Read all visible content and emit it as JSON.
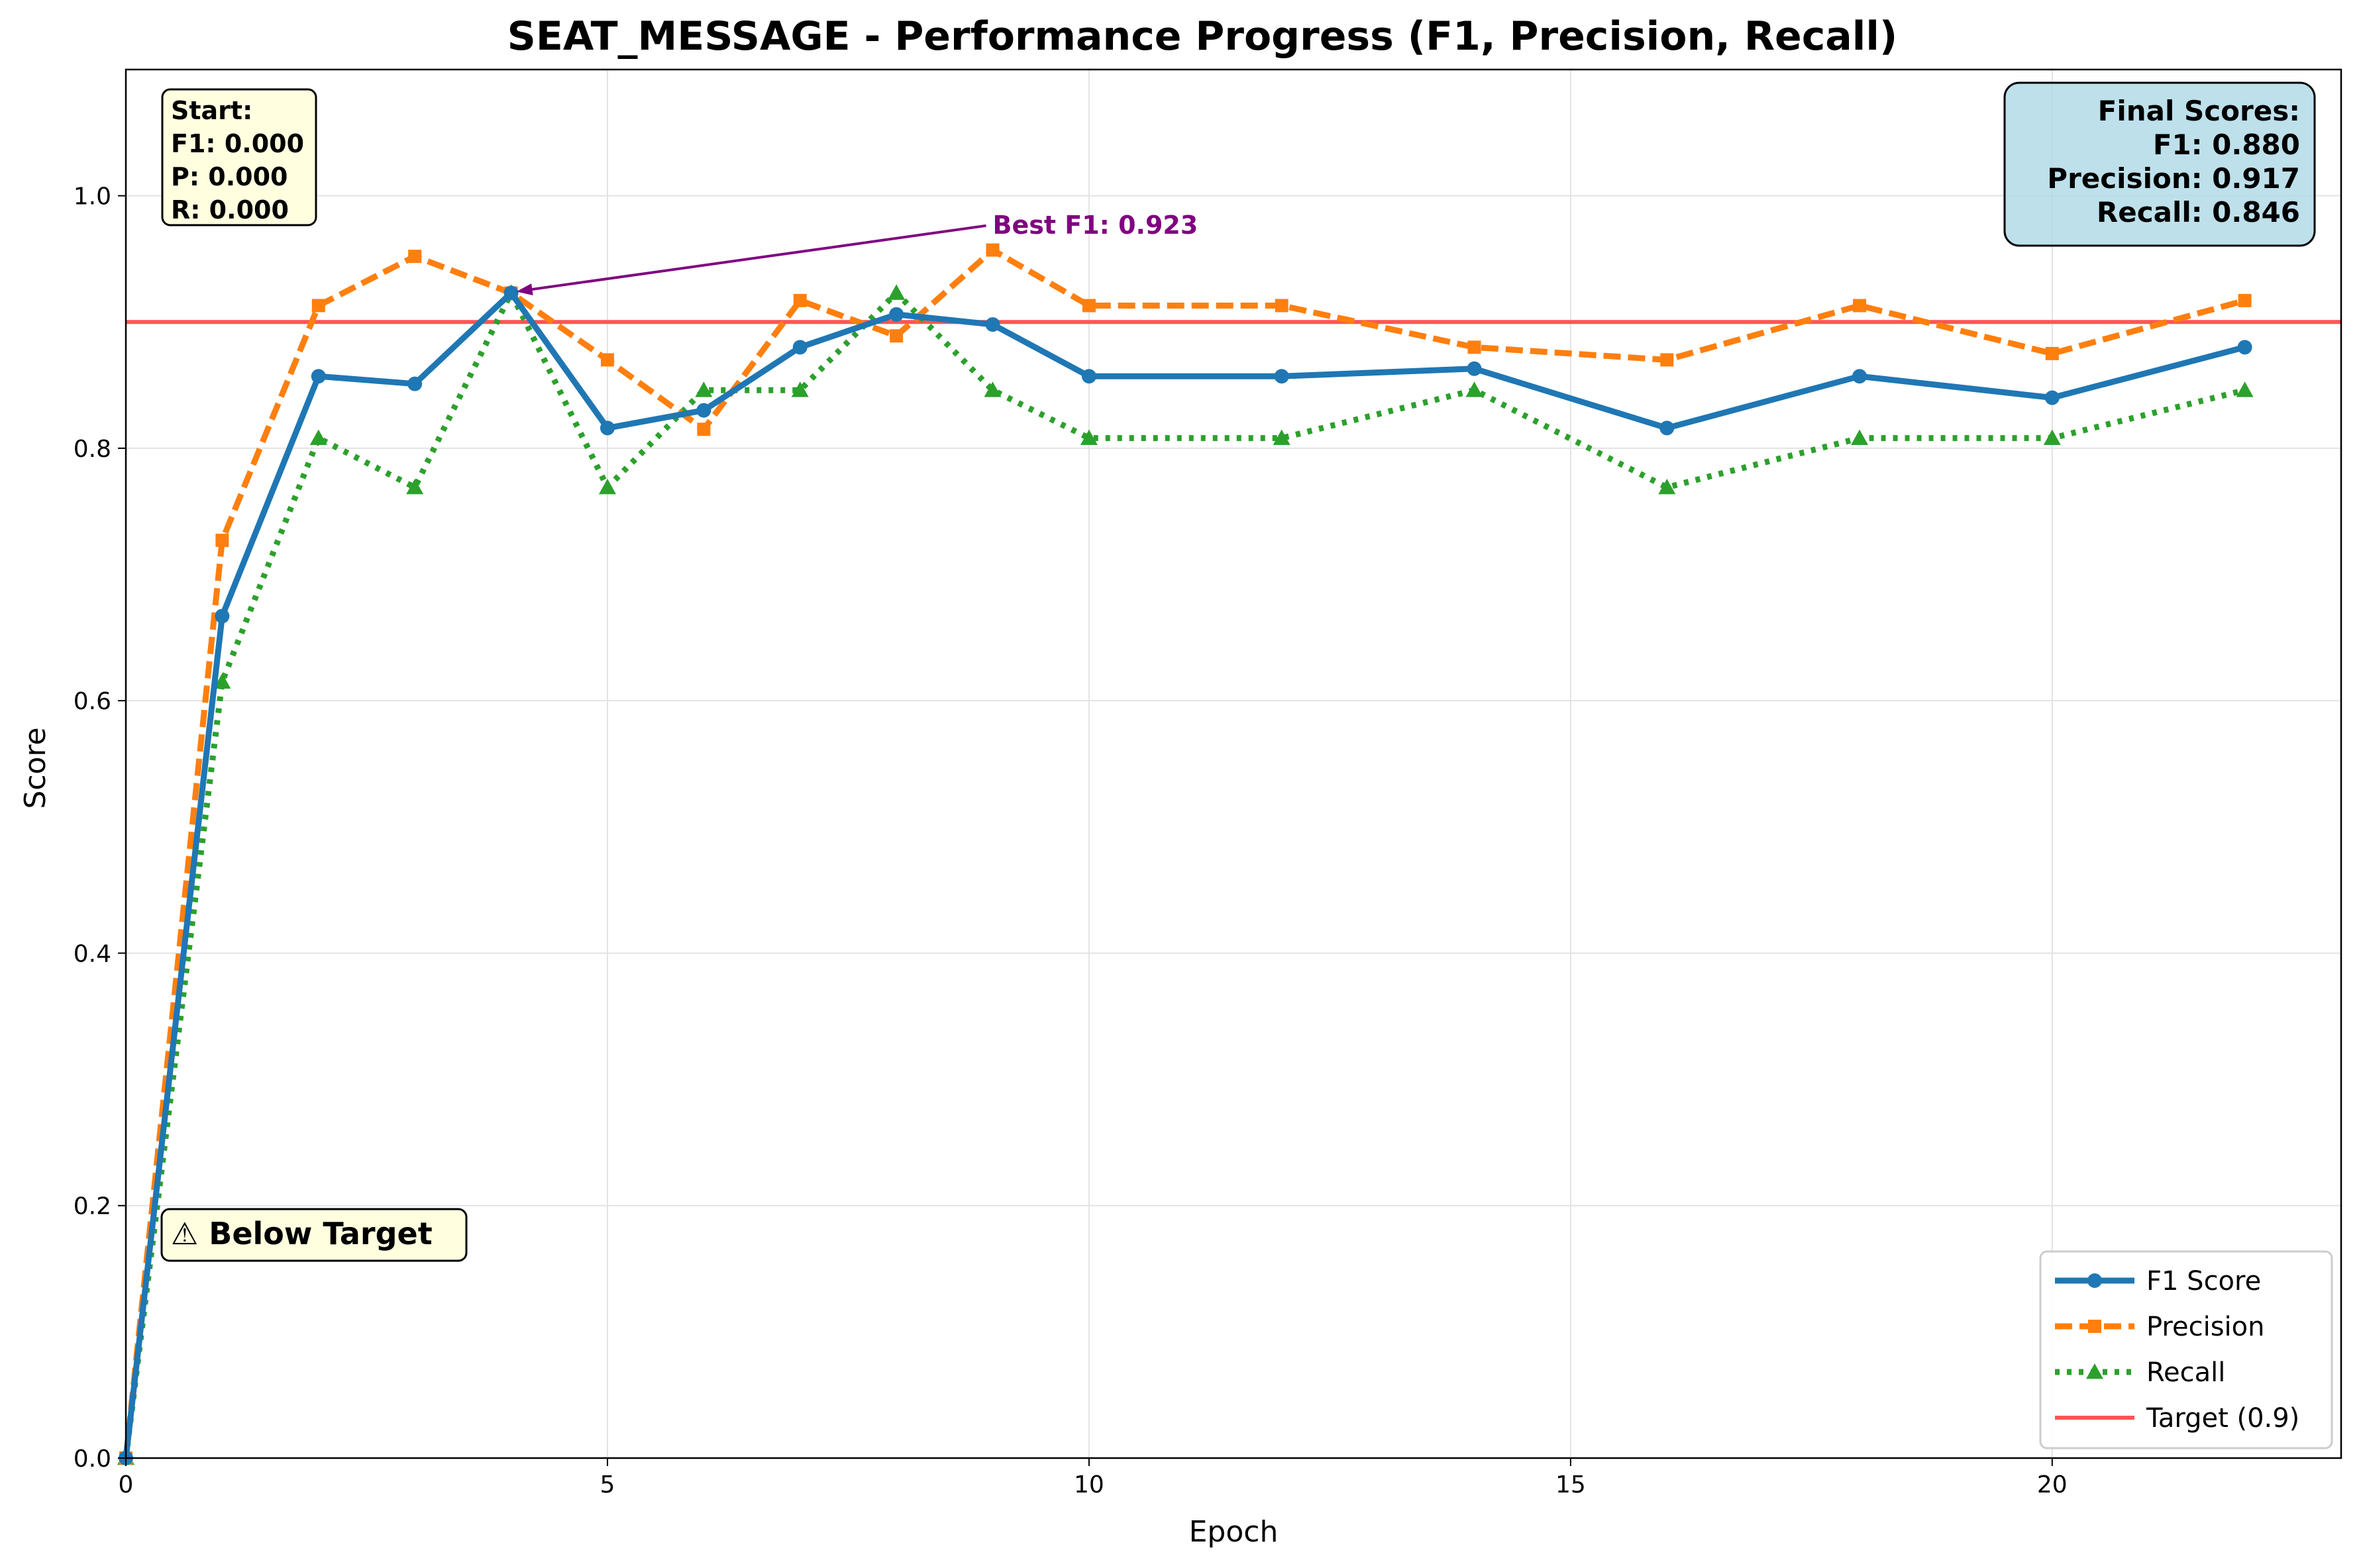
{
  "chart_data": {
    "type": "line",
    "title": "SEAT_MESSAGE - Performance Progress (F1, Precision, Recall)",
    "xlabel": "Epoch",
    "ylabel": "Score",
    "xlim": [
      0,
      23
    ],
    "ylim": [
      0,
      1.1
    ],
    "xticks": [
      0,
      5,
      10,
      15,
      20
    ],
    "xtick_labels": [
      "0",
      "5",
      "10",
      "15",
      "20"
    ],
    "yticks": [
      0.0,
      0.2,
      0.4,
      0.6,
      0.8,
      1.0
    ],
    "ytick_labels": [
      "0.0",
      "0.2",
      "0.4",
      "0.6",
      "0.8",
      "1.0"
    ],
    "grid": true,
    "x": [
      0,
      1,
      2,
      3,
      4,
      5,
      6,
      7,
      8,
      9,
      10,
      12,
      14,
      16,
      18,
      20,
      22
    ],
    "series": [
      {
        "name": "F1 Score",
        "color": "#1f77b4",
        "style": "solid",
        "marker": "circle",
        "values": [
          0.0,
          0.667,
          0.857,
          0.851,
          0.923,
          0.816,
          0.83,
          0.88,
          0.906,
          0.898,
          0.857,
          0.857,
          0.863,
          0.816,
          0.857,
          0.84,
          0.88
        ]
      },
      {
        "name": "Precision",
        "color": "#ff7f0e",
        "style": "dashed",
        "marker": "square",
        "values": [
          0.0,
          0.727,
          0.913,
          0.952,
          0.923,
          0.87,
          0.815,
          0.917,
          0.889,
          0.957,
          0.913,
          0.913,
          0.88,
          0.87,
          0.913,
          0.875,
          0.917
        ]
      },
      {
        "name": "Recall",
        "color": "#2ca02c",
        "style": "dotted",
        "marker": "triangle",
        "values": [
          0.0,
          0.615,
          0.808,
          0.769,
          0.923,
          0.769,
          0.846,
          0.846,
          0.923,
          0.846,
          0.808,
          0.808,
          0.846,
          0.769,
          0.808,
          0.808,
          0.846
        ]
      }
    ],
    "target": {
      "label": "Target (0.9)",
      "value": 0.9,
      "color": "#ff5555"
    },
    "legend_position": "lower-right",
    "annotations": {
      "best": {
        "text": "Best F1: 0.923",
        "x": 4,
        "y": 0.923,
        "text_x": 9,
        "text_y": 0.97,
        "color": "#800080"
      },
      "start": {
        "lines": [
          "Start:",
          "F1: 0.000",
          "P: 0.000",
          "R: 0.000"
        ]
      },
      "final": {
        "lines": [
          "Final Scores:",
          "F1: 0.880",
          "Precision: 0.917",
          "Recall: 0.846"
        ]
      },
      "status": {
        "text": "⚠ Below Target"
      }
    }
  }
}
